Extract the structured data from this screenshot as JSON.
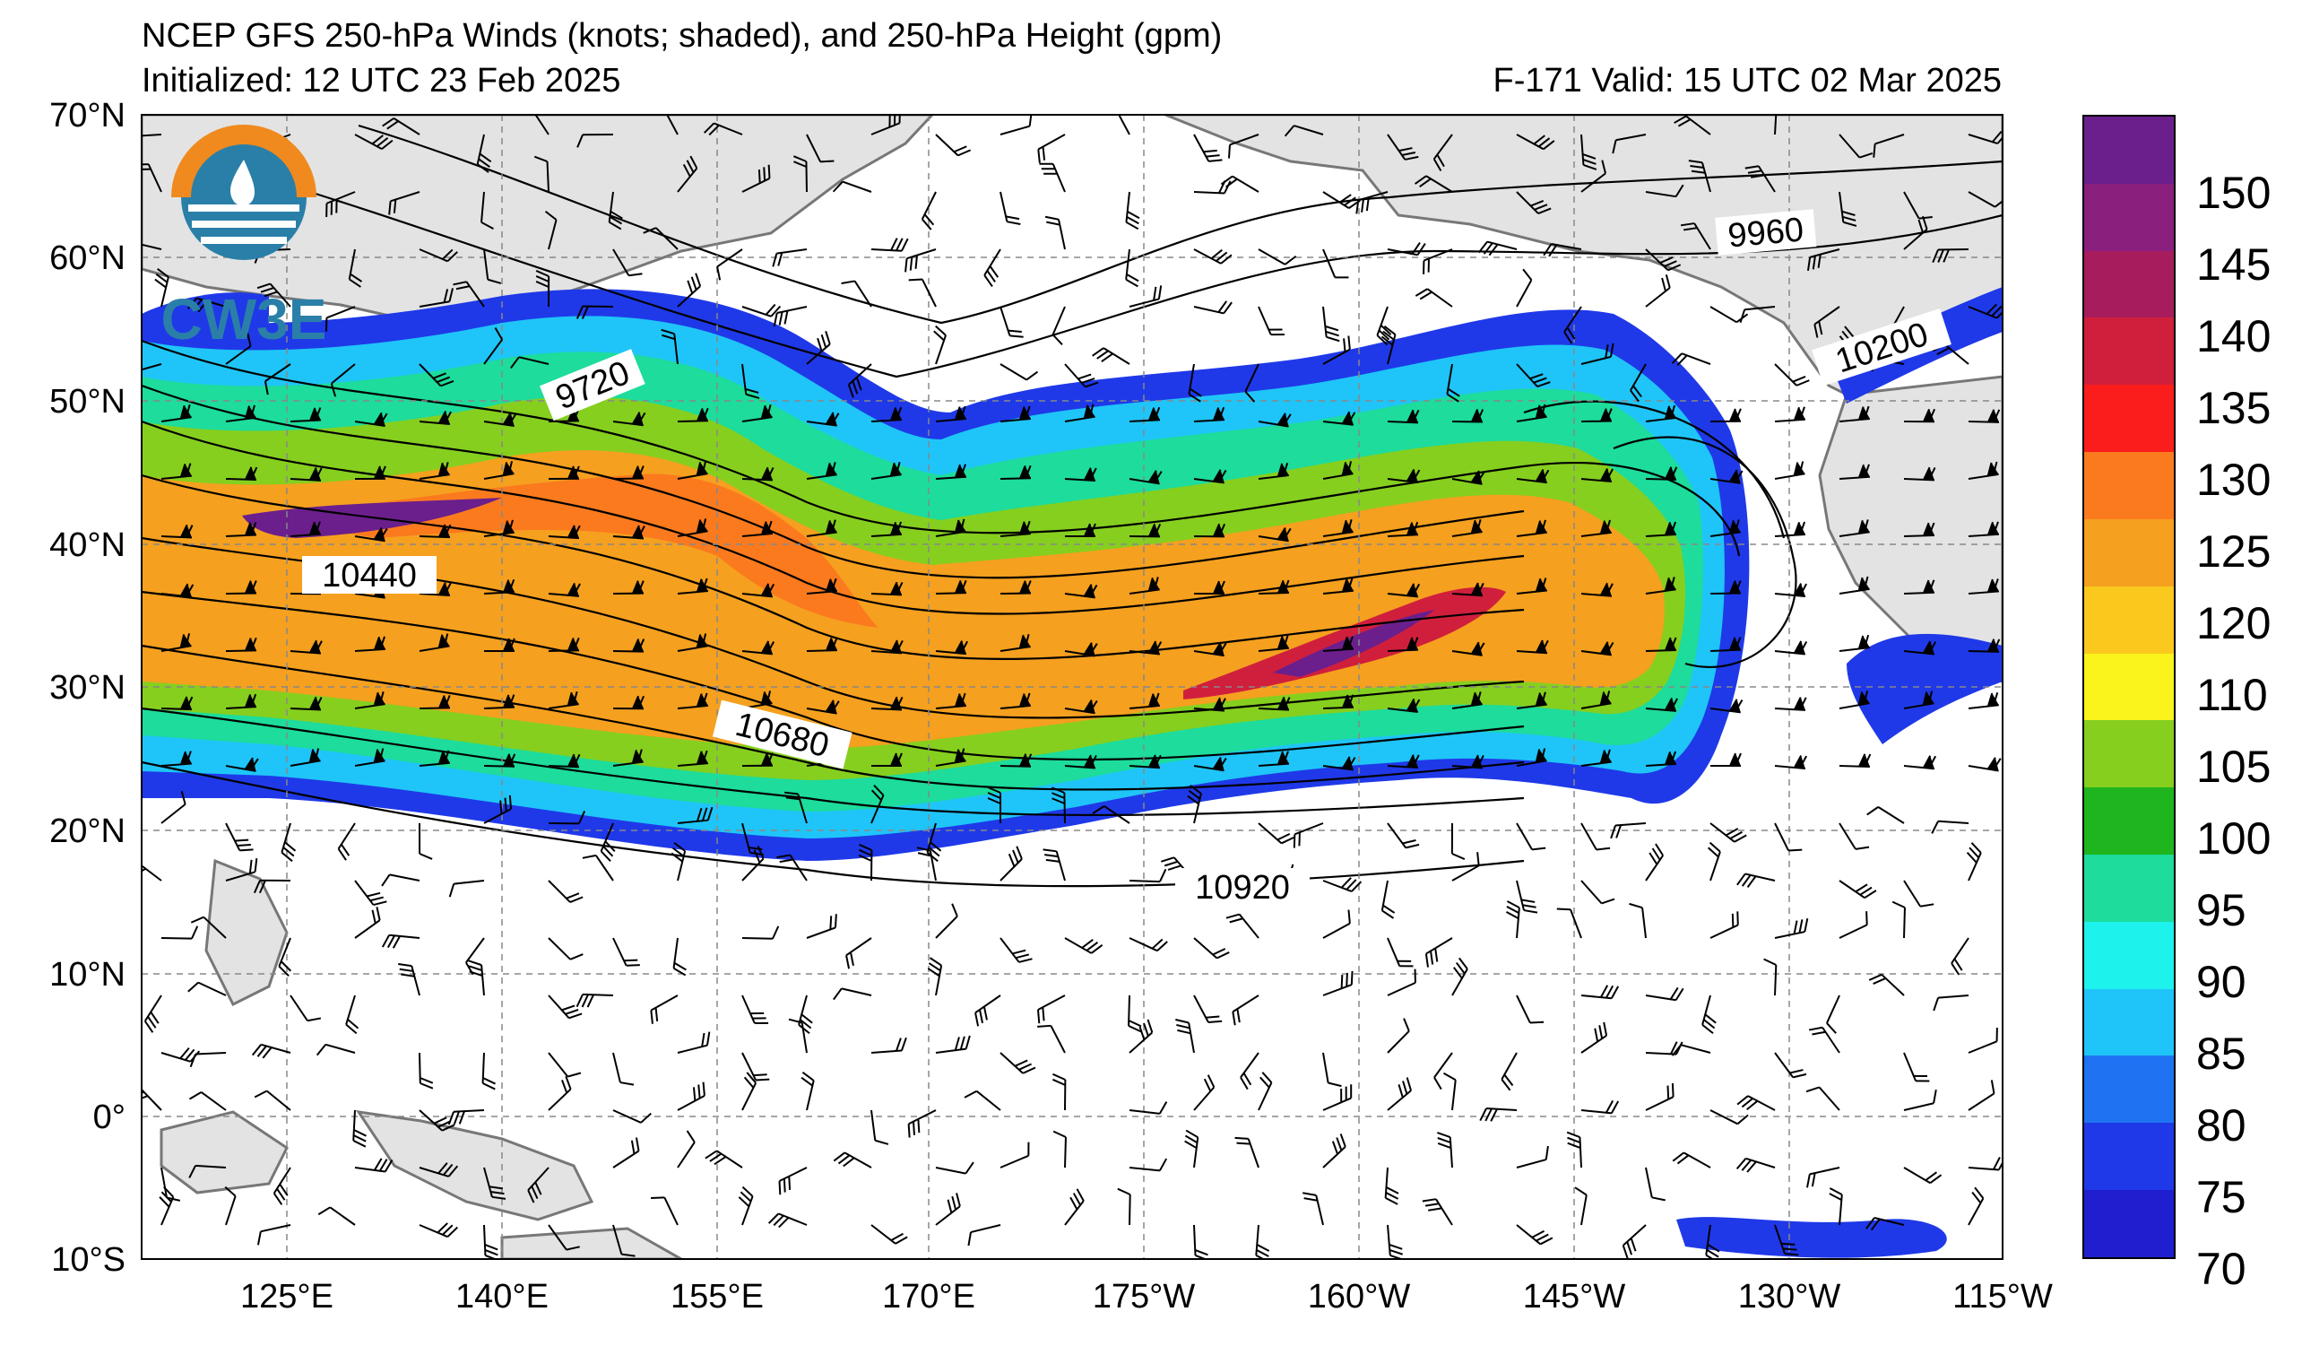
{
  "header": {
    "title": "NCEP GFS 250-hPa Winds (knots; shaded), and 250-hPa Height (gpm)",
    "initialized": "Initialized: 12 UTC 23 Feb 2025",
    "valid": "F-171  Valid: 15 UTC 02 Mar 2025"
  },
  "logo": {
    "text": "CW3E"
  },
  "axes": {
    "lat_labels": [
      "70°N",
      "60°N",
      "50°N",
      "40°N",
      "30°N",
      "20°N",
      "10°N",
      "0°",
      "10°S"
    ],
    "lon_labels": [
      "125°E",
      "140°E",
      "155°E",
      "170°E",
      "175°W",
      "160°W",
      "145°W",
      "130°W",
      "115°W"
    ]
  },
  "contour_labels": [
    "9960",
    "10200",
    "9720",
    "10440",
    "10680",
    "10920"
  ],
  "colorbar": {
    "labels": [
      "150",
      "145",
      "140",
      "135",
      "130",
      "125",
      "120",
      "110",
      "105",
      "100",
      "95",
      "90",
      "85",
      "80",
      "75",
      "70"
    ],
    "colors_top_to_bottom": [
      "#6b1f8c",
      "#8a1f7e",
      "#a71c5d",
      "#d01f3c",
      "#fb1c1c",
      "#fb7a1e",
      "#f5a01f",
      "#fbc91e",
      "#fbf41c",
      "#86cf1f",
      "#1fb51f",
      "#1ddc9c",
      "#1df2ec",
      "#1fc5f8",
      "#1f73f3",
      "#1f39e8",
      "#1f1fcf"
    ]
  }
}
